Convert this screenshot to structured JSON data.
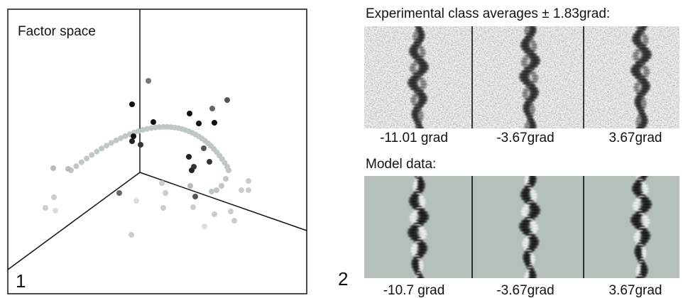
{
  "panel1": {
    "title": "Factor space",
    "label": "1"
  },
  "panel2": {
    "label": "2",
    "experimental": {
      "title": "Experimental class averages ± 1.83grad:",
      "labels": [
        "-11.01 grad",
        "-3.67grad",
        "3.67grad"
      ]
    },
    "model": {
      "title": "Model data:",
      "labels": [
        "-10.7 grad",
        "-3.67grad",
        "3.67grad"
      ]
    }
  }
}
